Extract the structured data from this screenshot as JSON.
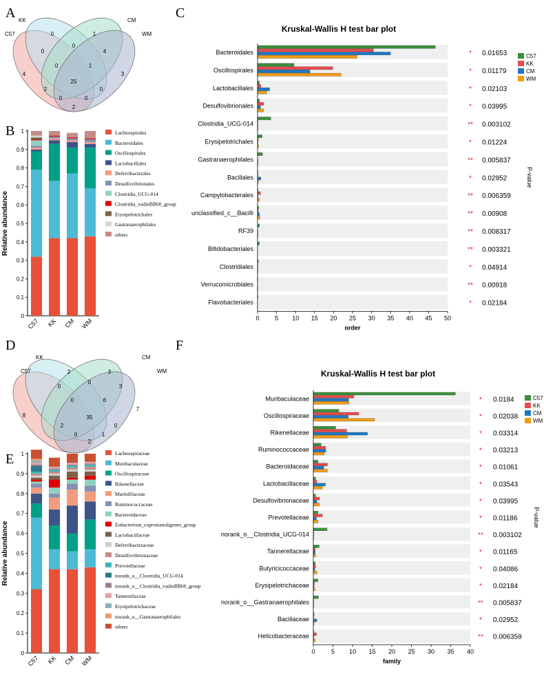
{
  "panels": {
    "A": {
      "letter": "A",
      "sets": [
        "C57",
        "KK",
        "CM",
        "WM"
      ],
      "colors": [
        "#f4a7a3",
        "#b9e2ef",
        "#a6dcc7",
        "#a9b4cf"
      ],
      "regions": {
        "C57": "4",
        "KK": "0",
        "CM": "1",
        "WM": "3",
        "C57_KK": "0",
        "KK_CM": "0",
        "CM_WM": "4",
        "C57_KK_CM": "0",
        "KK_CM_WM": "1",
        "C57_CM": "2",
        "KK_WM": "0",
        "all": "25",
        "C57_KK_WM": "0",
        "C57_CM_WM": "0",
        "C57_WM": "2"
      }
    },
    "B": {
      "letter": "B",
      "ylabel": "Relative abundance",
      "samples": [
        "C57",
        "KK",
        "CM",
        "WM"
      ],
      "yticks": [
        "0",
        "0.1",
        "0.2",
        "0.3",
        "0.4",
        "0.5",
        "0.6",
        "0.7",
        "0.8",
        "0.9",
        "1"
      ],
      "legend": [
        "Lachnospirales",
        "Bacteroidales",
        "Oscillospirales",
        "Lactobacillales",
        "Deferribacterales",
        "Desulfovibrionales",
        "Clostridia_UCG-014",
        "Clostridia_vadinBB60_group",
        "Erysipelotrichales",
        "Gastranaerophilales",
        "others"
      ],
      "colors": [
        "#e8503a",
        "#4dbbd5",
        "#00a087",
        "#3c5488",
        "#f39b7f",
        "#8491b4",
        "#91d1c2",
        "#dc0000",
        "#7e6148",
        "#d6d6d6",
        "#c48d85"
      ]
    },
    "C": {
      "letter": "C",
      "title": "Kruskal-Wallis H test bar plot",
      "xlabel": "order",
      "pvalue_label": "P-value",
      "series_names": [
        "C57",
        "KK",
        "CM",
        "WM"
      ],
      "series_colors": [
        "#3a8f3a",
        "#e64b4b",
        "#1f77c4",
        "#f39c12"
      ],
      "xticks": [
        "0",
        "5",
        "10",
        "15",
        "20",
        "25",
        "30",
        "35",
        "40",
        "45",
        "50"
      ],
      "rows": [
        {
          "name": "Bacteroidales",
          "stars": "*",
          "p": "0.01653"
        },
        {
          "name": "Oscillospirales",
          "stars": "*",
          "p": "0.01179"
        },
        {
          "name": "Lactobacillales",
          "stars": "*",
          "p": "0.02103"
        },
        {
          "name": "Desulfovibrionales",
          "stars": "*",
          "p": "0.03995"
        },
        {
          "name": "Clostridia_UCG-014",
          "stars": "**",
          "p": "0.003102"
        },
        {
          "name": "Erysipelotrichales",
          "stars": "*",
          "p": "0.01224"
        },
        {
          "name": "Gastranaerophilales",
          "stars": "**",
          "p": "0.005837"
        },
        {
          "name": "Bacillales",
          "stars": "*",
          "p": "0.02952"
        },
        {
          "name": "Campylobacterales",
          "stars": "**",
          "p": "0.006359"
        },
        {
          "name": "unclassified_c__Bacilli",
          "stars": "**",
          "p": "0.00908"
        },
        {
          "name": "RF39",
          "stars": "**",
          "p": "0.008317"
        },
        {
          "name": "Bifidobacteriales",
          "stars": "**",
          "p": "0.003321"
        },
        {
          "name": "Clostridiales",
          "stars": "*",
          "p": "0.04914"
        },
        {
          "name": "Verrucomicrobiales",
          "stars": "**",
          "p": "0.00918"
        },
        {
          "name": "Flavobacteriales",
          "stars": "*",
          "p": "0.02184"
        }
      ]
    },
    "D": {
      "letter": "D",
      "sets": [
        "C57",
        "KK",
        "CM",
        "WM"
      ],
      "colors": [
        "#f4a7a3",
        "#b9e2ef",
        "#a6dcc7",
        "#a9b4cf"
      ],
      "regions": {
        "C57": "8",
        "KK": "2",
        "CM": "3",
        "WM": "7",
        "C57_KK": "0",
        "KK_CM": "0",
        "CM_WM": "3",
        "C57_KK_CM": "0",
        "KK_CM_WM": "6",
        "C57_CM": "2",
        "KK_WM": "0",
        "all": "35",
        "C57_KK_WM": "0",
        "C57_CM_WM": "1",
        "C57_WM": "2"
      }
    },
    "E": {
      "letter": "E",
      "ylabel": "Relative abundance",
      "samples": [
        "C57",
        "KK",
        "CM",
        "WM"
      ],
      "yticks": [
        "0",
        "0.1",
        "0.2",
        "0.3",
        "0.4",
        "0.5",
        "0.6",
        "0.7",
        "0.8",
        "0.9",
        "1"
      ],
      "legend": [
        "Lachnospiraceae",
        "Muribaculaceae",
        "Oscillospiraceae",
        "Rikenellaceae",
        "Marinifilaceae",
        "Ruminococcaceae",
        "Bacteroidaceae",
        "Eubacterium_coprostanoligenes_group",
        "Lactobacillaceae",
        "Deferribacteraceae",
        "Desulfovibrionaceae",
        "Prevotellaceae",
        "norank_o__Clostridia_UCG-014",
        "norank_o__Clostridia_vadinBB60_group",
        "Tannerellaceae",
        "Erysipelotrichaceae",
        "norank_o__Gastranaerophilales",
        "others"
      ],
      "colors": [
        "#e8503a",
        "#4dbbd5",
        "#00a087",
        "#3c5488",
        "#f39b7f",
        "#8491b4",
        "#91d1c2",
        "#dc0000",
        "#7e6148",
        "#cfcfcf",
        "#c48d85",
        "#3bb6b8",
        "#2e7a8c",
        "#a07a8c",
        "#e0a0a8",
        "#8fb0bd",
        "#e89a72",
        "#c8502e"
      ]
    },
    "F": {
      "letter": "F",
      "title": "Kruskal-Wallis H test bar plot",
      "xlabel": "family",
      "pvalue_label": "P-value",
      "series_names": [
        "C57",
        "KK",
        "CM",
        "WM"
      ],
      "series_colors": [
        "#3a8f3a",
        "#e64b4b",
        "#1f77c4",
        "#f39c12"
      ],
      "xticks": [
        "0",
        "5",
        "10",
        "15",
        "20",
        "25",
        "30",
        "35",
        "40"
      ],
      "rows": [
        {
          "name": "Muribaculaceae",
          "stars": "*",
          "p": "0.0184"
        },
        {
          "name": "Oscillospiraceae",
          "stars": "*",
          "p": "0.02038"
        },
        {
          "name": "Rikenellaceae",
          "stars": "*",
          "p": "0.03314"
        },
        {
          "name": "Ruminococcaceae",
          "stars": "*",
          "p": "0.03213"
        },
        {
          "name": "Bacteroidaceae",
          "stars": "*",
          "p": "0.01061"
        },
        {
          "name": "Lactobacillaceae",
          "stars": "*",
          "p": "0.03543"
        },
        {
          "name": "Desulfovibrionaceae",
          "stars": "*",
          "p": "0.03995"
        },
        {
          "name": "Prevotellaceae",
          "stars": "*",
          "p": "0.01186"
        },
        {
          "name": "norank_o__Clostridia_UCG-014",
          "stars": "**",
          "p": "0.003102"
        },
        {
          "name": "Tannerellaceae",
          "stars": "*",
          "p": "0.01165"
        },
        {
          "name": "Butyricicoccaceae",
          "stars": "*",
          "p": "0.04086"
        },
        {
          "name": "Erysipelotrichaceae",
          "stars": "*",
          "p": "0.02184"
        },
        {
          "name": "norank_o__Gastranaerophilales",
          "stars": "**",
          "p": "0.005837"
        },
        {
          "name": "Bacillaceae",
          "stars": "*",
          "p": "0.02952"
        },
        {
          "name": "Helicobacteraceae",
          "stars": "**",
          "p": "0.006359"
        }
      ]
    }
  },
  "chart_data": [
    {
      "id": "B",
      "type": "bar",
      "stacked": true,
      "categories": [
        "C57",
        "KK",
        "CM",
        "WM"
      ],
      "ylabel": "Relative abundance",
      "ylim": [
        0,
        1
      ],
      "series": [
        {
          "name": "Lachnospirales",
          "values": [
            0.32,
            0.42,
            0.42,
            0.43
          ]
        },
        {
          "name": "Bacteroidales",
          "values": [
            0.47,
            0.31,
            0.35,
            0.26
          ]
        },
        {
          "name": "Oscillospirales",
          "values": [
            0.1,
            0.2,
            0.14,
            0.22
          ]
        },
        {
          "name": "Lactobacillales",
          "values": [
            0.01,
            0.02,
            0.03,
            0.02
          ]
        },
        {
          "name": "Deferribacterales",
          "values": [
            0.01,
            0.01,
            0.01,
            0.01
          ]
        },
        {
          "name": "Desulfovibrionales",
          "values": [
            0.01,
            0.01,
            0.01,
            0.015
          ]
        },
        {
          "name": "Clostridia_UCG-014",
          "values": [
            0.03,
            0.0,
            0.0,
            0.0
          ]
        },
        {
          "name": "Clostridia_vadinBB60_group",
          "values": [
            0.005,
            0.005,
            0.005,
            0.005
          ]
        },
        {
          "name": "Erysipelotrichales",
          "values": [
            0.01,
            0.0,
            0.0,
            0.0
          ]
        },
        {
          "name": "Gastranaerophilales",
          "values": [
            0.01,
            0.0,
            0.0,
            0.0
          ]
        },
        {
          "name": "others",
          "values": [
            0.025,
            0.025,
            0.025,
            0.04
          ]
        }
      ]
    },
    {
      "id": "C",
      "type": "bar",
      "orientation": "horizontal",
      "title": "Kruskal-Wallis H test bar plot",
      "xlabel": "order",
      "xlim": [
        0,
        50
      ],
      "categories": [
        "Bacteroidales",
        "Oscillospirales",
        "Lactobacillales",
        "Desulfovibrionales",
        "Clostridia_UCG-014",
        "Erysipelotrichales",
        "Gastranaerophilales",
        "Bacillales",
        "Campylobacterales",
        "unclassified_c__Bacilli",
        "RF39",
        "Bifidobacteriales",
        "Clostridiales",
        "Verrucomicrobiales",
        "Flavobacteriales"
      ],
      "series": [
        {
          "name": "C57",
          "values": [
            46.8,
            9.6,
            0.5,
            0.5,
            3.5,
            1.2,
            1.3,
            0.1,
            0.1,
            0.3,
            0.5,
            0.5,
            0.2,
            0.1,
            0.1
          ]
        },
        {
          "name": "KK",
          "values": [
            30.5,
            19.8,
            0.9,
            1.6,
            0.1,
            0.2,
            0.0,
            0.1,
            0.8,
            0.2,
            0.0,
            0.0,
            0.1,
            0.0,
            0.0
          ]
        },
        {
          "name": "CM",
          "values": [
            35.0,
            13.8,
            3.2,
            0.8,
            0.1,
            0.1,
            0.1,
            0.9,
            0.1,
            0.5,
            0.1,
            0.0,
            0.1,
            0.0,
            0.0
          ]
        },
        {
          "name": "WM",
          "values": [
            26.2,
            22.0,
            2.4,
            1.6,
            0.1,
            0.3,
            0.1,
            0.2,
            0.5,
            0.6,
            0.1,
            0.0,
            0.1,
            0.1,
            0.0
          ]
        }
      ]
    },
    {
      "id": "E",
      "type": "bar",
      "stacked": true,
      "categories": [
        "C57",
        "KK",
        "CM",
        "WM"
      ],
      "ylabel": "Relative abundance",
      "ylim": [
        0,
        1
      ],
      "series": [
        {
          "name": "Lachnospiraceae",
          "values": [
            0.32,
            0.42,
            0.42,
            0.43
          ]
        },
        {
          "name": "Muribaculaceae",
          "values": [
            0.36,
            0.1,
            0.09,
            0.09
          ]
        },
        {
          "name": "Oscillospiraceae",
          "values": [
            0.07,
            0.12,
            0.09,
            0.15
          ]
        },
        {
          "name": "Rikenellaceae",
          "values": [
            0.05,
            0.08,
            0.14,
            0.09
          ]
        },
        {
          "name": "Marinifilaceae",
          "values": [
            0.03,
            0.06,
            0.08,
            0.05
          ]
        },
        {
          "name": "Ruminococcaceae",
          "values": [
            0.02,
            0.02,
            0.03,
            0.03
          ]
        },
        {
          "name": "Bacteroidaceae",
          "values": [
            0.01,
            0.03,
            0.02,
            0.03
          ]
        },
        {
          "name": "Eubacterium_coprostanoligenes_group",
          "values": [
            0.01,
            0.04,
            0.01,
            0.02
          ]
        },
        {
          "name": "Lactobacillaceae",
          "values": [
            0.01,
            0.02,
            0.03,
            0.02
          ]
        },
        {
          "name": "Deferribacteraceae",
          "values": [
            0.01,
            0.01,
            0.01,
            0.01
          ]
        },
        {
          "name": "Desulfovibrionaceae",
          "values": [
            0.01,
            0.01,
            0.01,
            0.015
          ]
        },
        {
          "name": "Prevotellaceae",
          "values": [
            0.01,
            0.01,
            0.01,
            0.01
          ]
        },
        {
          "name": "norank_o__Clostridia_UCG-014",
          "values": [
            0.03,
            0.0,
            0.0,
            0.0
          ]
        },
        {
          "name": "norank_o__Clostridia_vadinBB60_group",
          "values": [
            0.005,
            0.005,
            0.005,
            0.005
          ]
        },
        {
          "name": "Tannerellaceae",
          "values": [
            0.01,
            0.01,
            0.01,
            0.01
          ]
        },
        {
          "name": "Erysipelotrichaceae",
          "values": [
            0.01,
            0.0,
            0.0,
            0.0
          ]
        },
        {
          "name": "norank_o__Gastranaerophilales",
          "values": [
            0.01,
            0.0,
            0.0,
            0.0
          ]
        },
        {
          "name": "others",
          "values": [
            0.045,
            0.045,
            0.045,
            0.04
          ]
        }
      ]
    },
    {
      "id": "F",
      "type": "bar",
      "orientation": "horizontal",
      "title": "Kruskal-Wallis H test bar plot",
      "xlabel": "family",
      "xlim": [
        0,
        40
      ],
      "categories": [
        "Muribaculaceae",
        "Oscillospiraceae",
        "Rikenellaceae",
        "Ruminococcaceae",
        "Bacteroidaceae",
        "Lactobacillaceae",
        "Desulfovibrionaceae",
        "Prevotellaceae",
        "norank_o__Clostridia_UCG-014",
        "Tannerellaceae",
        "Butyricicoccaceae",
        "Erysipelotrichaceae",
        "norank_o__Gastranaerophilales",
        "Bacillaceae",
        "Helicobacteraceae"
      ],
      "series": [
        {
          "name": "C57",
          "values": [
            36.2,
            6.5,
            5.7,
            2.0,
            1.2,
            0.6,
            0.6,
            1.2,
            3.5,
            1.5,
            0.5,
            1.2,
            1.3,
            0.2,
            0.1
          ]
        },
        {
          "name": "KK",
          "values": [
            10.3,
            11.6,
            8.5,
            3.1,
            3.6,
            0.9,
            1.6,
            2.3,
            0.1,
            0.5,
            0.6,
            0.3,
            0.1,
            0.1,
            0.8
          ]
        },
        {
          "name": "CM",
          "values": [
            9.0,
            8.9,
            13.8,
            3.2,
            2.7,
            3.1,
            0.9,
            0.8,
            0.1,
            0.5,
            0.4,
            0.2,
            0.1,
            0.9,
            0.1
          ]
        },
        {
          "name": "WM",
          "values": [
            9.1,
            15.6,
            8.7,
            2.8,
            3.6,
            2.3,
            1.6,
            1.2,
            0.1,
            0.6,
            0.9,
            0.4,
            0.1,
            0.2,
            0.5
          ]
        }
      ]
    }
  ]
}
